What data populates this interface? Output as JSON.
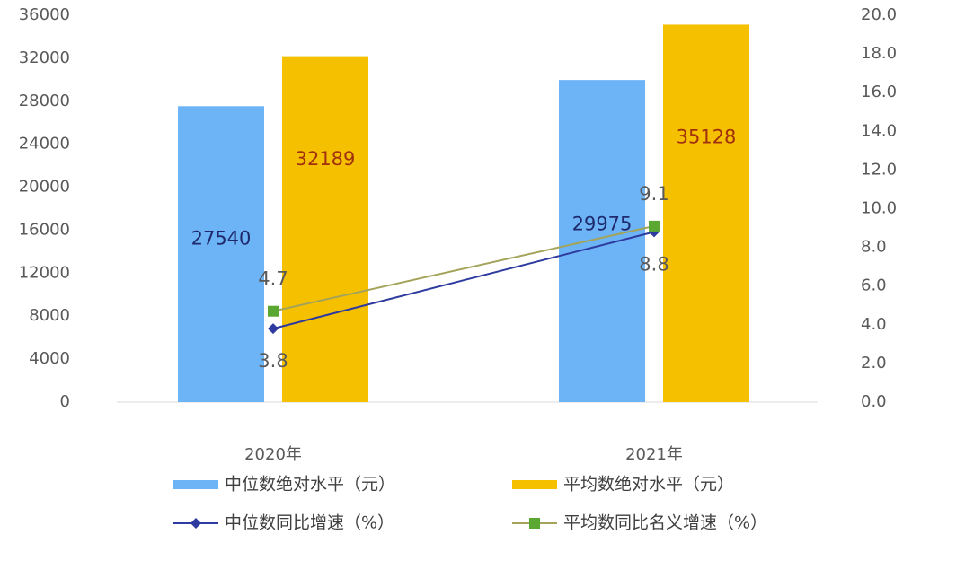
{
  "chart_data": {
    "type": "bar",
    "categories": [
      "2020年",
      "2021年"
    ],
    "series": [
      {
        "name": "中位数绝对水平（元）",
        "type": "bar",
        "color": "#6cb4f5",
        "label_color": "#1f2a6e",
        "values": [
          27540,
          29975
        ]
      },
      {
        "name": "平均数绝对水平（元）",
        "type": "bar",
        "color": "#f5c000",
        "label_color": "#a0300e",
        "values": [
          32189,
          35128
        ]
      },
      {
        "name": "中位数同比增速（%）",
        "type": "line",
        "axis": "y2",
        "color": "#2e3a9e",
        "values": [
          3.8,
          8.8
        ]
      },
      {
        "name": "平均数同比名义增速（%）",
        "type": "line",
        "axis": "y2",
        "color": "#a3a35a",
        "marker_color": "#5aa832",
        "values": [
          4.7,
          9.1
        ]
      }
    ],
    "ylim": [
      0,
      36000
    ],
    "yticks": [
      0,
      4000,
      8000,
      12000,
      16000,
      20000,
      24000,
      28000,
      32000,
      36000
    ],
    "y2lim": [
      0,
      20
    ],
    "y2ticks": [
      {
        "value": 0,
        "label": "0.0"
      },
      {
        "value": 2,
        "label": "2.0"
      },
      {
        "value": 4,
        "label": "4.0"
      },
      {
        "value": 6,
        "label": "6.0"
      },
      {
        "value": 8,
        "label": "8.0"
      },
      {
        "value": 10,
        "label": "10.0"
      },
      {
        "value": 12,
        "label": "12.0"
      },
      {
        "value": 14,
        "label": "14.0"
      },
      {
        "value": 16,
        "label": "16.0"
      },
      {
        "value": 18,
        "label": "18.0"
      },
      {
        "value": 20,
        "label": "20.0"
      }
    ]
  }
}
